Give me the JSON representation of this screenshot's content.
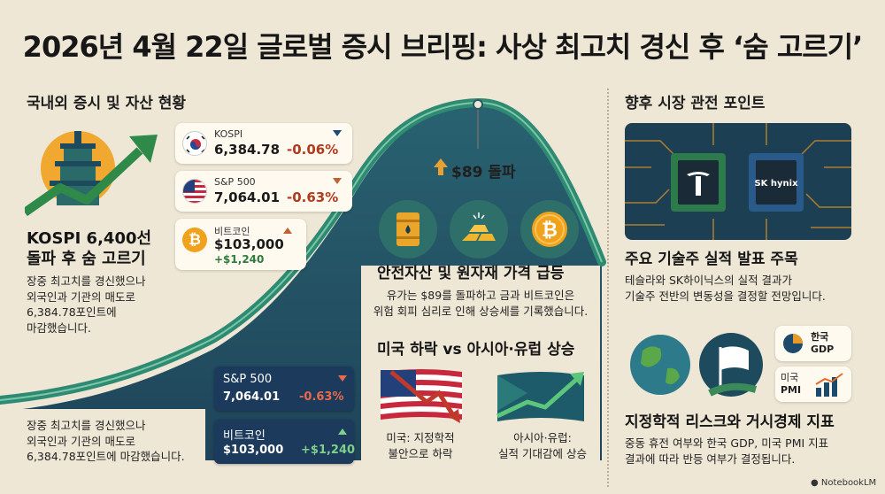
{
  "title": "2026년 4월 22일 글로벌 증시 브리핑: 사상 최고치 경신 후 ‘숨 고르기’",
  "left": {
    "heading": "국내외 증시 및 자산 현황",
    "tickers": [
      {
        "name": "KOSPI",
        "value": "6,384.78",
        "change": "-0.06%"
      },
      {
        "name": "S&P 500",
        "value": "7,064.01",
        "change": "-0.63%"
      },
      {
        "name": "비트코인",
        "value": "$103,000",
        "change": "+$1,240"
      }
    ],
    "kospi_headline_1": "KOSPI 6,400선",
    "kospi_headline_2": "돌파 후 숨 고르기",
    "kospi_body_1": "장중 최고치를 경신했으나",
    "kospi_body_2": "외국인과 기관의 매도로",
    "kospi_body_3": "6,384.78포인트에",
    "kospi_body_4": "마감했습니다.",
    "bottom_body_1": "장중 최고치를 경신했으나",
    "bottom_body_2": "외국인과 기관의 매도로",
    "bottom_body_3": "6,384.78포인트에 마감했습니다.",
    "dark_cards": [
      {
        "name": "S&P 500",
        "value": "7,064.01",
        "change": "-0.63%"
      },
      {
        "name": "비트코인",
        "value": "$103,000",
        "change": "+$1,240"
      }
    ]
  },
  "center": {
    "oil_label": "$89 돌파",
    "safe_heading": "안전자산 및 원자재 가격 급등",
    "safe_body_1": "유가는 $89를 돌파하고 금과 비트코인은",
    "safe_body_2": "위험 회피 심리로 인해 상승세를 기록했습니다.",
    "us_heading": "미국 하락 vs 아시아·유럽 상승",
    "us_caption_1": "미국: 지정학적",
    "us_caption_2": "불안으로 하락",
    "asia_caption_1": "아시아·유럽:",
    "asia_caption_2": "실적 기대감에 상승"
  },
  "right": {
    "heading": "향후 시장 관전 포인트",
    "chip_brand_2": "SK hynix",
    "earnings_heading": "주요 기술주 실적 발표 주목",
    "earnings_body_1": "테슬라와 SK하이닉스의 실적 결과가",
    "earnings_body_2": "기술주 전반의 변동성을 결정할 전망입니다.",
    "gdp_label_1": "한국",
    "gdp_label_2": "GDP",
    "pmi_label_1": "미국",
    "pmi_label_2": "PMI",
    "geo_heading": "지정학적 리스크와 거시경제 지표",
    "geo_body_1": "중동 휴전 여부와 한국 GDP, 미국 PMI 지표",
    "geo_body_2": "결과에 따라 반등 여부가 결정됩니다."
  },
  "watermark": "NotebookLM",
  "colors": {
    "background": "#efe7d6",
    "negative": "#b23a1e",
    "positive": "#2f7a3d",
    "navy": "#1b3a5c",
    "teal": "#2e6f6a",
    "gold": "#f0a21c"
  }
}
